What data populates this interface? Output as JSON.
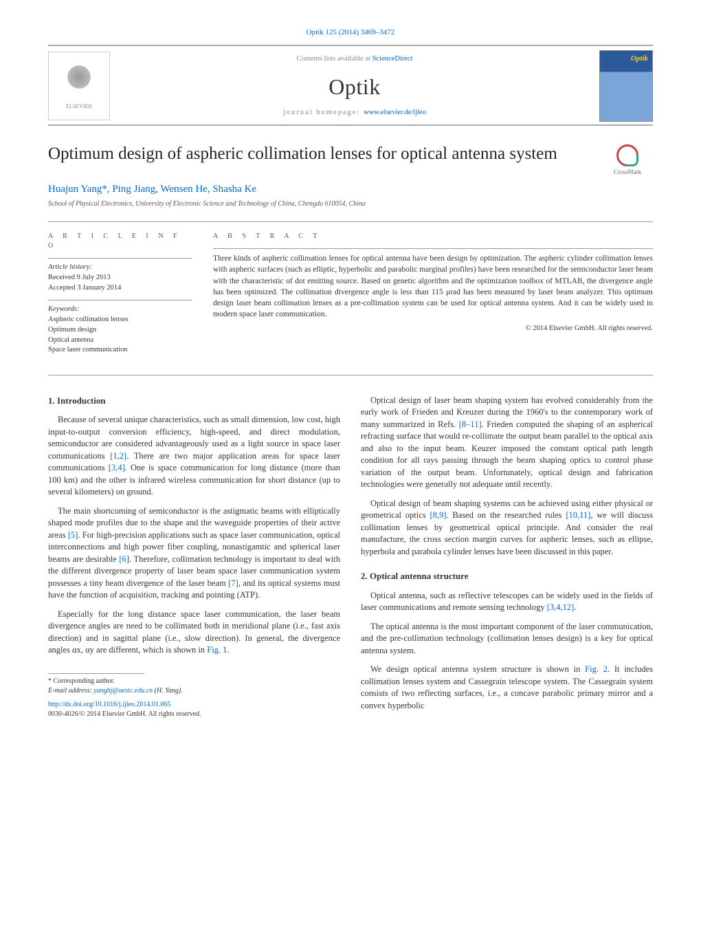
{
  "citation": "Optik 125 (2014) 3469–3472",
  "header": {
    "contents_prefix": "Contents lists available at ",
    "contents_link": "ScienceDirect",
    "journal": "Optik",
    "homepage_prefix": "journal homepage: ",
    "homepage_link": "www.elsevier.de/ijleo",
    "publisher_logo_text": "ELSEVIER"
  },
  "title": "Optimum design of aspheric collimation lenses for optical antenna system",
  "crossmark_label": "CrossMark",
  "authors_html": "Huajun Yang*, Ping Jiang, Wensen He, Shasha Ke",
  "affiliation": "School of Physical Electronics, University of Electronic Science and Technology of China, Chengdu 610054, China",
  "article_info": {
    "heading": "a r t i c l e   i n f o",
    "history_label": "Article history:",
    "received": "Received 9 July 2013",
    "accepted": "Accepted 3 January 2014",
    "keywords_label": "Keywords:",
    "keywords": [
      "Aspheric collimation lenses",
      "Optimum design",
      "Optical antenna",
      "Space laser communication"
    ]
  },
  "abstract": {
    "heading": "a b s t r a c t",
    "body": "Three kinds of aspheric collimation lenses for optical antenna have been design by optimization. The aspheric cylinder collimation lenses with aspheric surfaces (such as elliptic, hyperbolic and parabolic marginal profiles) have been researched for the semiconductor laser beam with the characteristic of dot emitting source. Based on genetic algorithm and the optimization toolbox of MTLAB, the divergence angle has been optimized. The collimation divergence angle is less than 115 μrad has been measured by laser beam analyzer. This optimum design laser beam collimation lenses as a pre-collimation system can be used for optical antenna system. And it can be widely used in modern space laser communication.",
    "copyright": "© 2014 Elsevier GmbH. All rights reserved."
  },
  "sections": {
    "s1_title": "1. Introduction",
    "s1_p1": "Because of several unique characteristics, such as small dimension, low cost, high input-to-output conversion efficiency, high-speed, and direct modulation, semiconductor are considered advantageously used as a light source in space laser communications [1,2]. There are two major application areas for space laser communications [3,4]. One is space communication for long distance (more than 100 km) and the other is infrared wireless communication for short distance (up to several kilometers) on ground.",
    "s1_p2": "The main shortcoming of semiconductor is the astigmatic beams with elliptically shaped mode profiles due to the shape and the waveguide properties of their active areas [5]. For high-precision applications such as space laser communication, optical interconnections and high power fiber coupling, nonastigamtic and spherical laser beams are desirable [6]. Therefore, collimation technology is important to deal with the different divergence property of laser beam space laser communication system possesses a tiny beam divergence of the laser beam [7], and its optical systems must have the function of acquisition, tracking and pointing (ATP).",
    "s1_p3": "Especially for the long distance space laser communication, the laser beam divergence angles are need to be collimated both in meridional plane (i.e., fast axis direction) and in sagittal plane (i.e., slow direction). In general, the divergence angles αx, αy are different, which is shown in Fig. 1.",
    "s1_p4": "Optical design of laser beam shaping system has evolved considerably from the early work of Frieden and Kreuzer during the 1960's to the contemporary work of many summarized in Refs. [8–11]. Frieden computed the shaping of an aspherical refracting surface that would re-collimate the output beam parallel to the optical axis and also to the input beam. Keuzer imposed the constant optical path length condition for all rays passing through the beam shaping optics to control phase variation of the output beam. Unfortunately, optical design and fabrication technologies were generally not adequate until recently.",
    "s1_p5": "Optical design of beam shaping systems can be achieved using either physical or geometrical optics [8,9]. Based on the researched rules [10,11], we will discuss collimation lenses by geometrical optical principle. And consider the real manufacture, the cross section margin curves for aspheric lenses, such as ellipse, hyperbola and parabola cylinder lenses have been discussed in this paper.",
    "s2_title": "2. Optical antenna structure",
    "s2_p1": "Optical antenna, such as reflective telescopes can be widely used in the fields of laser communications and remote sensing technology [3,4,12].",
    "s2_p2": "The optical antenna is the most important component of the laser communication, and the pre-collimation technology (collimation lenses design) is a key for optical antenna system.",
    "s2_p3": "We design optical antenna system structure is shown in Fig. 2. It includes collimation lenses system and Cassegrain telescope system. The Cassegrain system consists of two reflecting surfaces, i.e., a concave parabolic primary mirror and a convex hyperbolic"
  },
  "footnote": {
    "corr": "* Corresponding author.",
    "email_label": "E-mail address: ",
    "email": "yanghj@uestc.edu.cn",
    "email_who": " (H. Yang)."
  },
  "doi": {
    "link": "http://dx.doi.org/10.1016/j.ijleo.2014.01.065",
    "issn_line": "0030-4026/© 2014 Elsevier GmbH. All rights reserved."
  },
  "colors": {
    "link": "#0066cc",
    "text": "#333333",
    "rule": "#999999",
    "muted": "#888888"
  }
}
